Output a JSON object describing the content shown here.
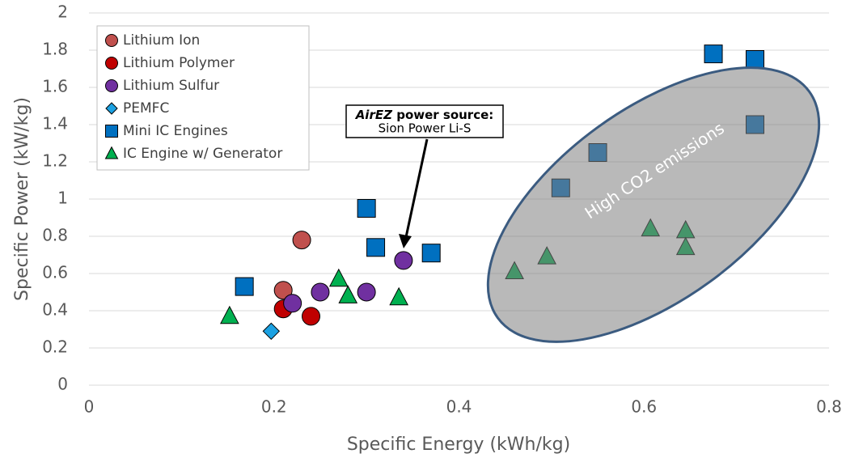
{
  "chart_data": {
    "type": "scatter",
    "x_label": "Specific Energy (kWh/kg)",
    "y_label": "Specific Power (kW/kg)",
    "xlim": [
      0,
      0.8
    ],
    "xticks": [
      0,
      0.2,
      0.4,
      0.6,
      0.8
    ],
    "ylim": [
      0,
      2
    ],
    "yticks": [
      0,
      0.2,
      0.4,
      0.6,
      0.8,
      1,
      1.2,
      1.4,
      1.6,
      1.8,
      2
    ],
    "grid": true,
    "legend": "upper left",
    "annotations": {
      "callout_bold_italic": "AirEZ",
      "callout_bold": " power source:",
      "callout_line2": "Sion Power Li-S",
      "region": "High CO2 emissions"
    },
    "series": [
      {
        "name": "Lithium Ion",
        "color": "#c0504d",
        "marker": "circle",
        "x": [
          0.21,
          0.23
        ],
        "values": [
          0.51,
          0.78
        ]
      },
      {
        "name": "Lithium Polymer",
        "color": "#c00000",
        "marker": "circle",
        "x": [
          0.21,
          0.24
        ],
        "values": [
          0.41,
          0.37
        ]
      },
      {
        "name": "Lithium Sulfur",
        "color": "#7030a0",
        "marker": "circle",
        "x": [
          0.22,
          0.25,
          0.3,
          0.34
        ],
        "values": [
          0.44,
          0.5,
          0.5,
          0.67
        ]
      },
      {
        "name": "PEMFC",
        "color": "#1ba1e2",
        "marker": "diamond",
        "x": [
          0.197
        ],
        "values": [
          0.29
        ]
      },
      {
        "name": "Mini IC Engines",
        "color": "#0070c0",
        "marker": "square",
        "x": [
          0.168,
          0.3,
          0.31,
          0.37,
          0.51,
          0.55,
          0.675,
          0.72,
          0.72
        ],
        "values": [
          0.53,
          0.95,
          0.74,
          0.71,
          1.06,
          1.25,
          1.78,
          1.75,
          1.4
        ]
      },
      {
        "name": "IC Engine w/ Generator",
        "color": "#00b050",
        "marker": "triangle",
        "x": [
          0.152,
          0.27,
          0.28,
          0.335,
          0.46,
          0.495,
          0.607,
          0.645,
          0.645
        ],
        "values": [
          0.37,
          0.57,
          0.48,
          0.47,
          0.61,
          0.69,
          0.84,
          0.83,
          0.74
        ]
      }
    ]
  }
}
